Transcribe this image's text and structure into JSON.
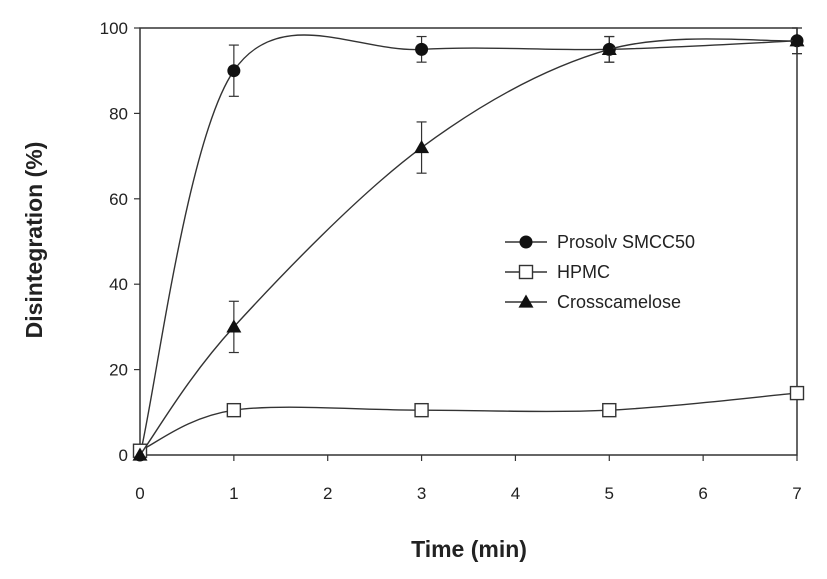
{
  "chart_data": {
    "type": "line",
    "xlabel": "Time (min)",
    "ylabel": "Disintegration (%)",
    "xlim": [
      0,
      7
    ],
    "ylim": [
      0,
      100
    ],
    "xticks": [
      0,
      1,
      2,
      3,
      4,
      5,
      6,
      7
    ],
    "yticks": [
      0,
      20,
      40,
      60,
      80,
      100
    ],
    "grid": false,
    "legend_position": "right",
    "smooth": true,
    "x": [
      0,
      1,
      3,
      5,
      7
    ],
    "series": [
      {
        "name": "Prosolv SMCC50",
        "marker": "filled-circle",
        "values": [
          0,
          90,
          95,
          95,
          97
        ],
        "error": [
          0,
          6,
          3,
          3,
          3
        ]
      },
      {
        "name": "HPMC",
        "marker": "open-square",
        "values": [
          1,
          10.5,
          10.5,
          10.5,
          14.5
        ],
        "error": [
          0,
          0,
          0,
          0,
          0
        ]
      },
      {
        "name": "Crosscamelose",
        "marker": "filled-triangle",
        "values": [
          0,
          30,
          72,
          95,
          97
        ],
        "error": [
          0,
          6,
          6,
          3,
          3
        ]
      }
    ]
  }
}
